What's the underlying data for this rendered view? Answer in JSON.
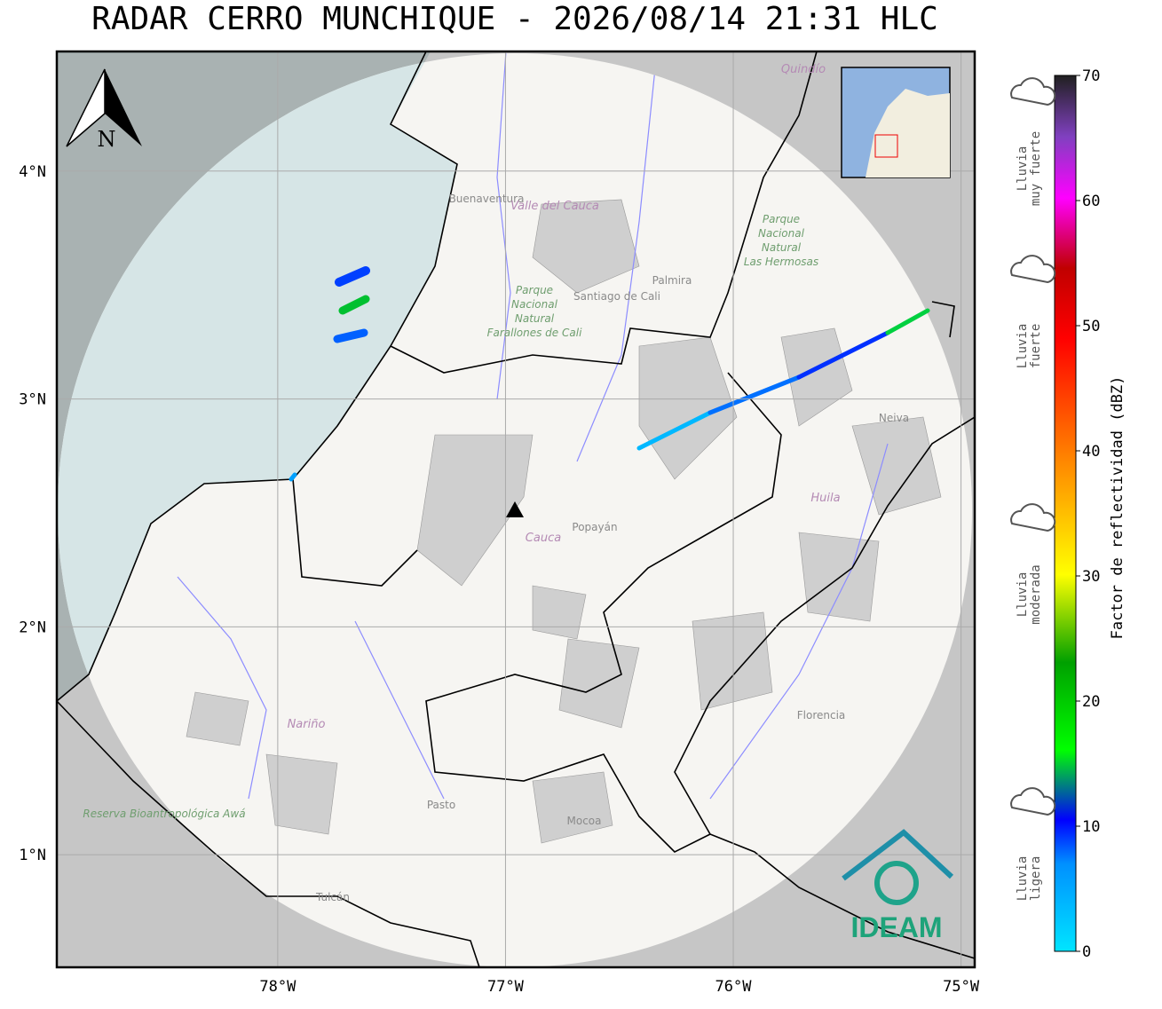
{
  "map": {
    "title": "RADAR CERRO MUNCHIQUE - 2026/08/14 21:31 HLC",
    "north": "N",
    "xlim": [
      -78.97,
      -74.94
    ],
    "ylim": [
      0.506,
      4.525
    ],
    "xticks": [
      {
        "value": -78,
        "label": "78°W"
      },
      {
        "value": -77,
        "label": "77°W"
      },
      {
        "value": -76,
        "label": "76°W"
      },
      {
        "value": -75,
        "label": "75°W"
      }
    ],
    "yticks": [
      {
        "value": 4,
        "label": "4°N"
      },
      {
        "value": 3,
        "label": "3°N"
      },
      {
        "value": 2,
        "label": "2°N"
      },
      {
        "value": 1,
        "label": "1°N"
      }
    ],
    "places": [
      "Buenaventura",
      "Valle del Cauca",
      "Quindío",
      "Parque Nacional Natural Farallones de Cali",
      "Santiago de Cali",
      "Palmira",
      "Parque Nacional Natural Las Hermosas",
      "Neiva",
      "Huila",
      "Popayán",
      "Cauca",
      "Nariño",
      "Pasto",
      "Mocoa",
      "Florencia",
      "Reserva Bioantropológica Awá",
      "Tulcán"
    ],
    "logo": "IDEAM",
    "colorbar": {
      "label": "Factor de reflectividad (dBZ)",
      "lim": [
        0,
        70
      ],
      "ticks": [
        0,
        10,
        20,
        30,
        40,
        50,
        60,
        70
      ]
    },
    "rain_levels": [
      "Lluvia muy fuerte",
      "Lluvia fuerte",
      "Lluvia moderada",
      "Lluvia ligera"
    ]
  }
}
